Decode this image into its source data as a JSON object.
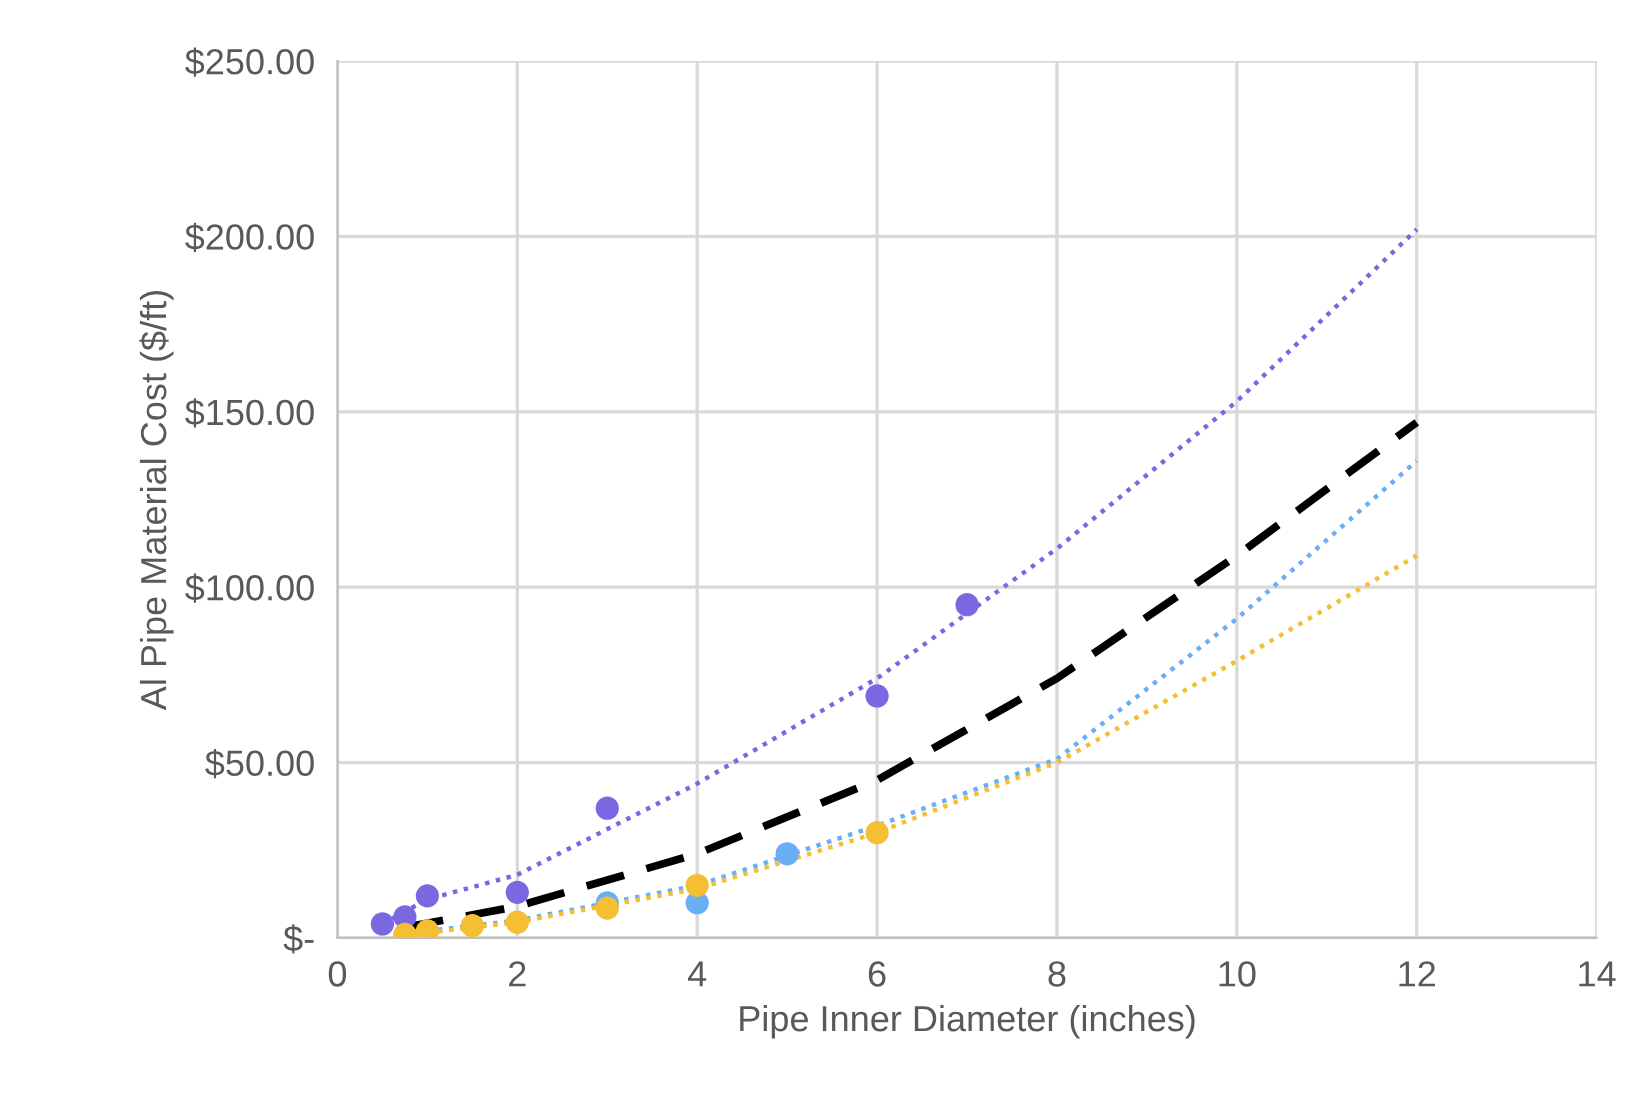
{
  "chart_data": {
    "type": "scatter",
    "xlabel": "Pipe Inner Diameter (inches)",
    "ylabel": "Al Pipe Material Cost ($/ft)",
    "xlim": [
      0,
      14
    ],
    "xticks": [
      0,
      2,
      4,
      6,
      8,
      10,
      12,
      14
    ],
    "ylim": [
      0,
      250
    ],
    "yticks": [
      {
        "value": 0,
        "label": "$-"
      },
      {
        "value": 50,
        "label": "$50.00"
      },
      {
        "value": 100,
        "label": "$100.00"
      },
      {
        "value": 150,
        "label": "$150.00"
      },
      {
        "value": 200,
        "label": "$200.00"
      },
      {
        "value": 250,
        "label": "$250.00"
      }
    ],
    "grid": true,
    "series": [
      {
        "type": "line",
        "line_style": "dotted",
        "marker": "none",
        "color": "#7b68e0",
        "x": [
          0.5,
          1,
          2,
          4,
          6,
          8,
          10,
          12
        ],
        "values": [
          4,
          11,
          18,
          44,
          74,
          111,
          153,
          202
        ]
      },
      {
        "type": "line",
        "line_style": "dotted",
        "marker": "none",
        "color": "#6aaef5",
        "x": [
          0.75,
          1,
          2,
          4,
          6,
          8,
          10,
          12
        ],
        "values": [
          1,
          2,
          5,
          15,
          32,
          51,
          91,
          136
        ]
      },
      {
        "type": "line",
        "line_style": "dotted",
        "marker": "none",
        "color": "#f5bf33",
        "x": [
          0.75,
          1,
          2,
          4,
          6,
          8,
          10,
          12
        ],
        "values": [
          1,
          1.5,
          4.5,
          14,
          30,
          50,
          79,
          109
        ]
      },
      {
        "type": "line",
        "line_style": "dashed",
        "marker": "none",
        "color": "#000000",
        "x": [
          0.75,
          2,
          4,
          6,
          8,
          10,
          12
        ],
        "values": [
          3,
          9,
          24,
          45,
          74,
          109,
          147
        ]
      },
      {
        "marker": "circle",
        "color": "#7b68e0",
        "x": [
          0.5,
          0.75,
          1,
          2,
          3,
          6,
          7
        ],
        "values": [
          4,
          6,
          12,
          13,
          37,
          69,
          95
        ]
      },
      {
        "marker": "circle",
        "color": "#6aaef5",
        "x": [
          3,
          4,
          5
        ],
        "values": [
          10,
          10,
          24
        ]
      },
      {
        "marker": "circle",
        "color": "#f5bf33",
        "x": [
          0.75,
          1,
          1.5,
          2,
          3,
          4,
          6
        ],
        "values": [
          1,
          2,
          3.5,
          4.5,
          8.5,
          15,
          30
        ]
      }
    ]
  }
}
